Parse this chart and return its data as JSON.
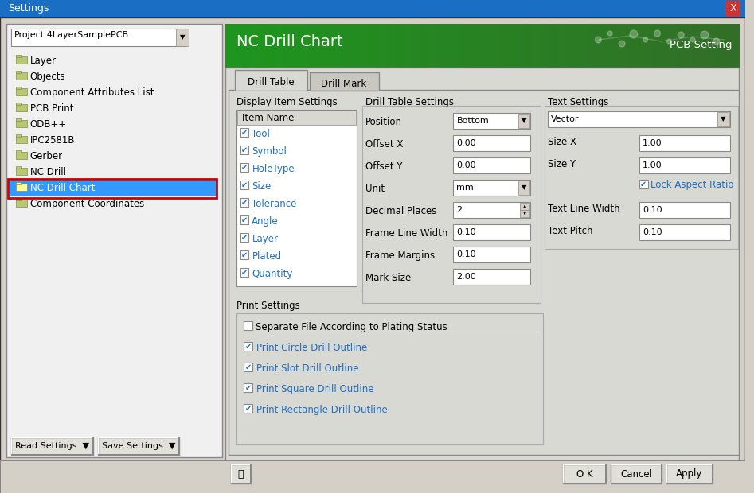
{
  "window_title": "Settings",
  "window_bg": "#d4d0c8",
  "titlebar_bg": "#1a6fc4",
  "titlebar_text": "Settings",
  "titlebar_text_color": "#ffffff",
  "close_btn": "X",
  "header_title": "NC Drill Chart",
  "header_subtitle": "PCB Setting",
  "dropdown_text": "Project.4LayerSamplePCB",
  "tree_items": [
    {
      "name": "Layer",
      "selected": false
    },
    {
      "name": "Objects",
      "selected": false
    },
    {
      "name": "Component Attributes List",
      "selected": false
    },
    {
      "name": "PCB Print",
      "selected": false
    },
    {
      "name": "ODB++",
      "selected": false
    },
    {
      "name": "IPC2581B",
      "selected": false
    },
    {
      "name": "Gerber",
      "selected": false
    },
    {
      "name": "NC Drill",
      "selected": false
    },
    {
      "name": "NC Drill Chart",
      "selected": true
    },
    {
      "name": "Component Coordinates",
      "selected": false
    }
  ],
  "tab1": "Drill Table",
  "tab2": "Drill Mark",
  "section1_title": "Display Item Settings",
  "item_name_header": "Item Name",
  "checkboxes": [
    "Tool",
    "Symbol",
    "HoleType",
    "Size",
    "Tolerance",
    "Angle",
    "Layer",
    "Plated",
    "Quantity"
  ],
  "section2_title": "Drill Table Settings",
  "drill_fields": [
    {
      "label": "Position",
      "value": "Bottom",
      "dropdown": true,
      "spinner": false
    },
    {
      "label": "Offset X",
      "value": "0.00",
      "dropdown": false,
      "spinner": false
    },
    {
      "label": "Offset Y",
      "value": "0.00",
      "dropdown": false,
      "spinner": false
    },
    {
      "label": "Unit",
      "value": "mm",
      "dropdown": true,
      "spinner": false
    },
    {
      "label": "Decimal Places",
      "value": "2",
      "dropdown": false,
      "spinner": true
    },
    {
      "label": "Frame Line Width",
      "value": "0.10",
      "dropdown": false,
      "spinner": false
    },
    {
      "label": "Frame Margins",
      "value": "0.10",
      "dropdown": false,
      "spinner": false
    },
    {
      "label": "Mark Size",
      "value": "2.00",
      "dropdown": false,
      "spinner": false
    }
  ],
  "section3_title": "Text Settings",
  "section3_vector_value": "Vector",
  "size_x_label": "Size X",
  "size_x_value": "1.00",
  "size_y_label": "Size Y",
  "size_y_value": "1.00",
  "lock_aspect_label": "Lock Aspect Ratio",
  "text_line_width_label": "Text Line Width",
  "text_line_width_value": "0.10",
  "text_pitch_label": "Text Pitch",
  "text_pitch_value": "0.10",
  "print_section_title": "Print Settings",
  "print_checkbox_label": "Separate File According to Plating Status",
  "print_checkboxes": [
    "Print Circle Drill Outline",
    "Print Slot Drill Outline",
    "Print Square Drill Outline",
    "Print Rectangle Drill Outline"
  ],
  "btn_ok": "O K",
  "btn_cancel": "Cancel",
  "btn_apply": "Apply",
  "btn_read": "Read Settings",
  "btn_save": "Save Settings",
  "selected_highlight": "#3399ff",
  "selected_text": "#ffffff",
  "checkbox_color": "#1e6fc4",
  "link_color": "#1e6fc4",
  "field_bg": "#ffffff",
  "window_border": "#333333"
}
